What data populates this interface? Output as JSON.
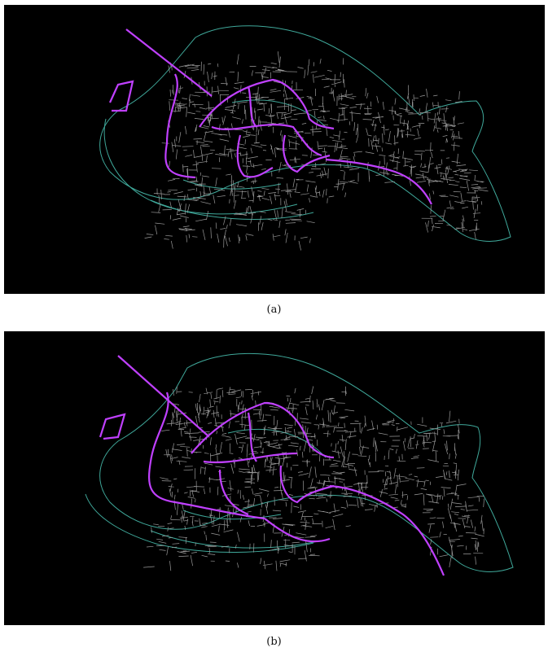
{
  "figure": {
    "panels": [
      {
        "id": "a",
        "caption": "(a)"
      },
      {
        "id": "b",
        "caption": "(b)"
      }
    ]
  },
  "colors": {
    "background": "#000000",
    "street_network": "#9a9a9a",
    "waterway_outline": "#3fa89a",
    "highlighted_route": "#c040ff"
  }
}
